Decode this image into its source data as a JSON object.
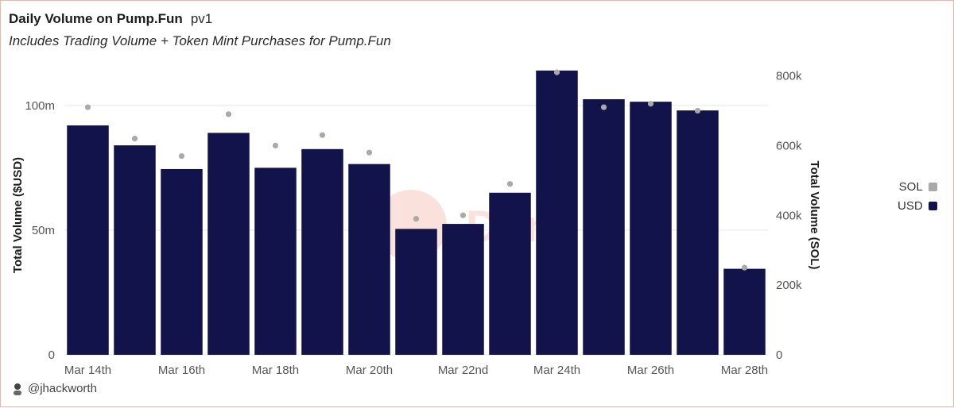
{
  "header": {
    "title": "Daily Volume on Pump.Fun",
    "suffix": "pv1",
    "subtitle": "Includes Trading Volume + Token Mint Purchases for Pump.Fun"
  },
  "author": {
    "handle": "@jhackworth",
    "icon": "user-avatar-icon"
  },
  "watermark": {
    "text": "Dune"
  },
  "colors": {
    "usd": "#12134b",
    "sol": "#a9a9a9",
    "grid": "#e6e6e6",
    "watermark": "#f9d8d0"
  },
  "chart_data": {
    "type": "bar",
    "categories": [
      "Mar 14th",
      "Mar 15th",
      "Mar 16th",
      "Mar 17th",
      "Mar 18th",
      "Mar 19th",
      "Mar 20th",
      "Mar 21st",
      "Mar 22nd",
      "Mar 23rd",
      "Mar 24th",
      "Mar 25th",
      "Mar 26th",
      "Mar 27th",
      "Mar 28th"
    ],
    "x_tick_labels": [
      "Mar 14th",
      "",
      "Mar 16th",
      "",
      "Mar 18th",
      "",
      "Mar 20th",
      "",
      "Mar 22nd",
      "",
      "Mar 24th",
      "",
      "Mar 26th",
      "",
      "Mar 28th"
    ],
    "series": [
      {
        "name": "USD",
        "type": "bar",
        "axis": "left",
        "values": [
          92,
          84,
          74.5,
          89,
          75,
          82.5,
          76.5,
          50.5,
          52.5,
          65,
          114,
          102.5,
          101.5,
          98,
          34.5
        ]
      },
      {
        "name": "SOL",
        "type": "scatter",
        "axis": "right",
        "values": [
          710000,
          620000,
          570000,
          690000,
          600000,
          630000,
          580000,
          390000,
          400000,
          490000,
          810000,
          710000,
          720000,
          700000,
          250000
        ]
      }
    ],
    "ylabel": "Total Volume ($USD)",
    "y2label": "Total Volume (SOL)",
    "ylim": [
      0,
      113
    ],
    "y2lim": [
      0,
      808000
    ],
    "yticks": [
      {
        "value": 0,
        "label": "0"
      },
      {
        "value": 50,
        "label": "50m"
      },
      {
        "value": 100,
        "label": "100m"
      }
    ],
    "y2ticks": [
      {
        "value": 0,
        "label": "0"
      },
      {
        "value": 200000,
        "label": "200k"
      },
      {
        "value": 400000,
        "label": "400k"
      },
      {
        "value": 600000,
        "label": "600k"
      },
      {
        "value": 800000,
        "label": "800k"
      }
    ],
    "legend": {
      "position": "right",
      "items": [
        {
          "label": "SOL",
          "color": "#a9a9a9"
        },
        {
          "label": "USD",
          "color": "#12134b"
        }
      ]
    },
    "grid": true
  }
}
